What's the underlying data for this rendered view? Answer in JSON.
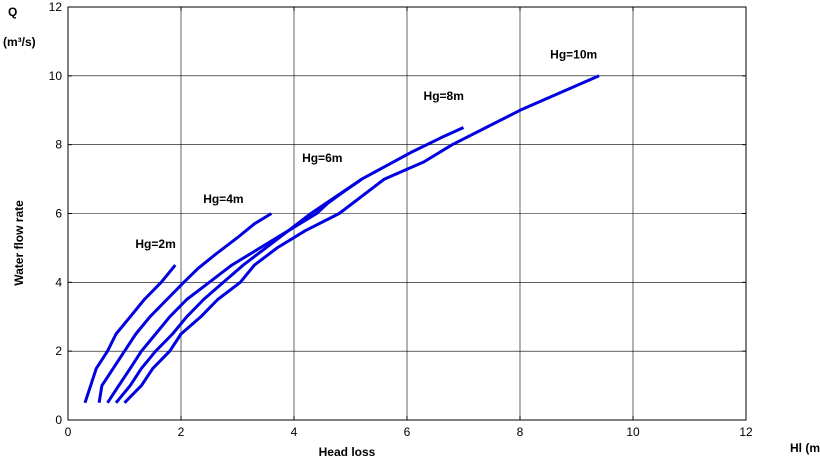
{
  "chart_data": {
    "type": "line",
    "title": "",
    "xlabel": "Head loss",
    "xunit": "Hl (m)",
    "ylabel": "Water flow rate",
    "yunit_top": "Q",
    "yunit_bottom": "(m³/s)",
    "xlim": [
      0,
      12
    ],
    "ylim": [
      0,
      12
    ],
    "xticks": [
      0,
      2,
      4,
      6,
      8,
      10,
      12
    ],
    "yticks": [
      0,
      2,
      4,
      6,
      8,
      10,
      12
    ],
    "grid": true,
    "line_color": "#0000e0",
    "series": [
      {
        "name": "Hg=2m",
        "points": [
          [
            0.3,
            0.5
          ],
          [
            0.5,
            1.5
          ],
          [
            0.7,
            2.0
          ],
          [
            0.85,
            2.5
          ],
          [
            1.1,
            3.0
          ],
          [
            1.35,
            3.5
          ],
          [
            1.65,
            4.0
          ],
          [
            1.9,
            4.5
          ]
        ]
      },
      {
        "name": "Hg=4m",
        "points": [
          [
            0.55,
            0.5
          ],
          [
            0.6,
            1.0
          ],
          [
            0.8,
            1.5
          ],
          [
            1.0,
            2.0
          ],
          [
            1.2,
            2.5
          ],
          [
            1.45,
            3.0
          ],
          [
            1.75,
            3.5
          ],
          [
            2.05,
            4.0
          ],
          [
            2.3,
            4.4
          ],
          [
            2.6,
            4.8
          ],
          [
            3.0,
            5.3
          ],
          [
            3.3,
            5.7
          ],
          [
            3.6,
            6.0
          ]
        ]
      },
      {
        "name": "Hg=6m",
        "points": [
          [
            0.7,
            0.5
          ],
          [
            0.9,
            1.0
          ],
          [
            1.1,
            1.5
          ],
          [
            1.3,
            2.0
          ],
          [
            1.55,
            2.5
          ],
          [
            1.8,
            3.0
          ],
          [
            2.1,
            3.5
          ],
          [
            2.5,
            4.0
          ],
          [
            2.9,
            4.5
          ],
          [
            3.4,
            5.0
          ],
          [
            3.9,
            5.5
          ],
          [
            4.4,
            6.0
          ],
          [
            4.6,
            6.3
          ],
          [
            4.85,
            6.6
          ],
          [
            5.2,
            7.0
          ],
          [
            5.65,
            7.4
          ],
          [
            6.1,
            7.8
          ],
          [
            6.6,
            8.2
          ],
          [
            7.0,
            8.5
          ]
        ]
      },
      {
        "name": "Hg=8m",
        "points": [
          [
            0.85,
            0.5
          ],
          [
            1.1,
            1.0
          ],
          [
            1.3,
            1.5
          ],
          [
            1.55,
            2.0
          ],
          [
            1.85,
            2.5
          ],
          [
            2.1,
            3.0
          ],
          [
            2.4,
            3.5
          ],
          [
            2.75,
            4.0
          ],
          [
            3.1,
            4.5
          ],
          [
            3.5,
            5.0
          ],
          [
            3.9,
            5.5
          ],
          [
            4.3,
            6.0
          ],
          [
            4.75,
            6.5
          ],
          [
            5.2,
            7.0
          ]
        ]
      },
      {
        "name": "Hg=10m",
        "points": [
          [
            1.0,
            0.5
          ],
          [
            1.3,
            1.0
          ],
          [
            1.5,
            1.5
          ],
          [
            1.8,
            2.0
          ],
          [
            2.0,
            2.5
          ],
          [
            2.35,
            3.0
          ],
          [
            2.65,
            3.5
          ],
          [
            3.05,
            4.0
          ],
          [
            3.3,
            4.5
          ],
          [
            3.7,
            5.0
          ],
          [
            4.2,
            5.5
          ],
          [
            4.8,
            6.0
          ],
          [
            5.6,
            7.0
          ],
          [
            6.3,
            7.5
          ],
          [
            6.8,
            8.0
          ],
          [
            7.4,
            8.5
          ],
          [
            8.0,
            9.0
          ],
          [
            8.7,
            9.5
          ],
          [
            9.4,
            10.0
          ]
        ]
      }
    ],
    "annotations": [
      {
        "text": "Hg=2m",
        "x": 1.55,
        "y": 5.0
      },
      {
        "text": "Hg=4m",
        "x": 2.75,
        "y": 6.3
      },
      {
        "text": "Hg=6m",
        "x": 4.5,
        "y": 7.5
      },
      {
        "text": "Hg=8m",
        "x": 6.65,
        "y": 9.3
      },
      {
        "text": "Hg=10m",
        "x": 8.95,
        "y": 10.5
      }
    ]
  }
}
